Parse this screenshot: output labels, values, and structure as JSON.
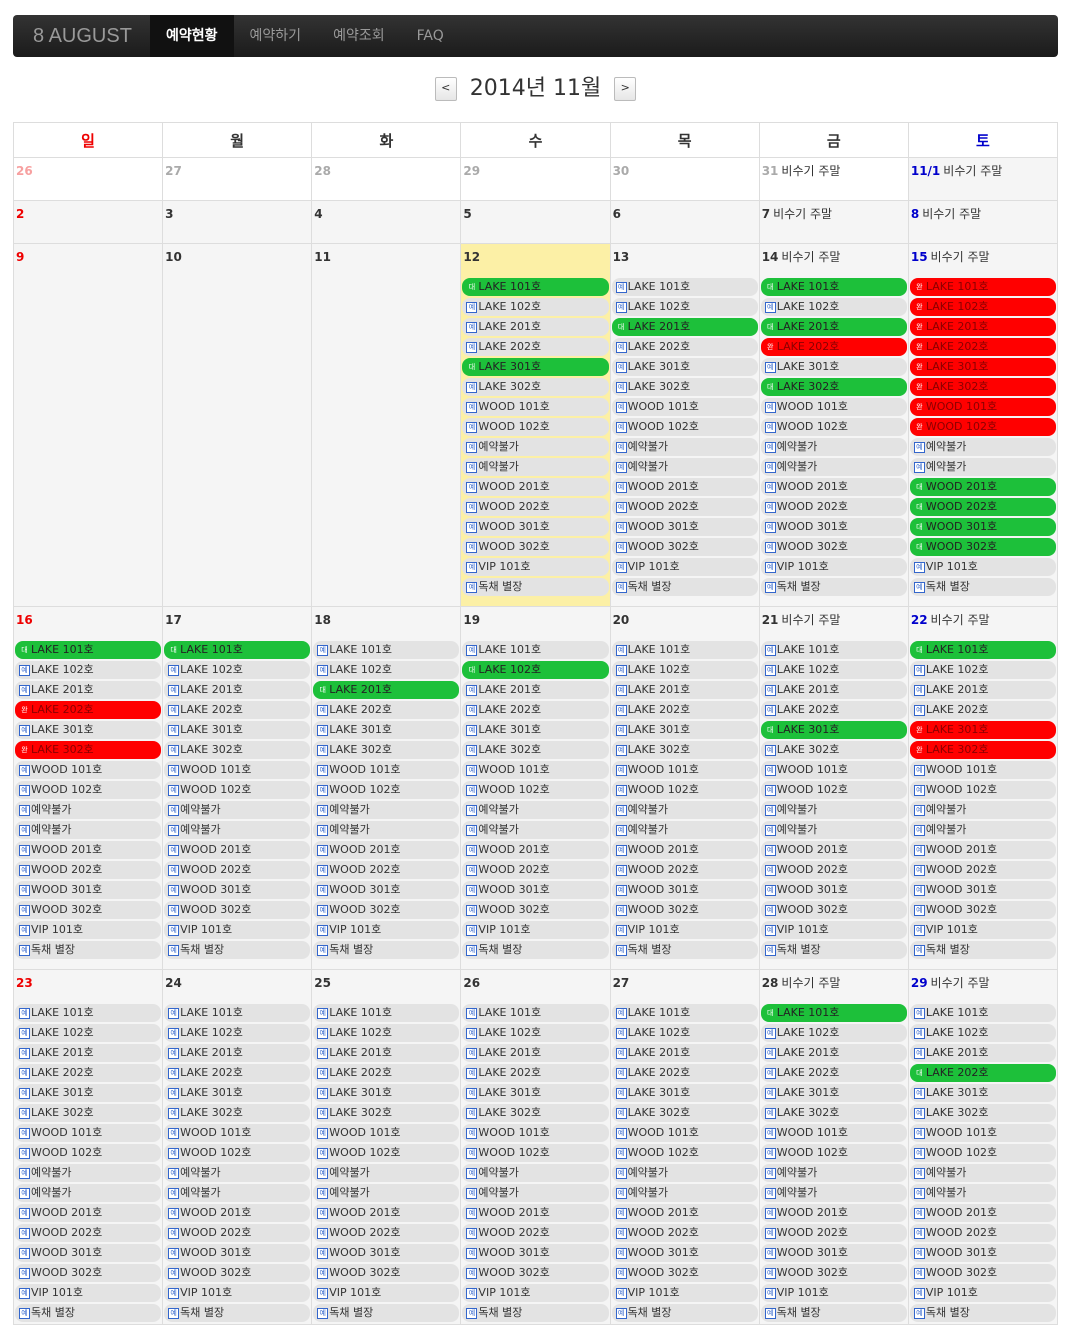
{
  "navbar": {
    "brand": "8 AUGUST",
    "items": [
      {
        "label": "예약현황",
        "active": true
      },
      {
        "label": "예약하기",
        "active": false
      },
      {
        "label": "예약조회",
        "active": false
      },
      {
        "label": "FAQ",
        "active": false
      }
    ]
  },
  "month": {
    "title": "2014년 11월",
    "prev_label": "<",
    "next_label": ">"
  },
  "weekdays": [
    "일",
    "월",
    "화",
    "수",
    "목",
    "금",
    "토"
  ],
  "status_badges": {
    "avail": "예",
    "wait": "대",
    "done": "완"
  },
  "colors": {
    "available": "#e3e3e3",
    "waiting": "#1dc03a",
    "completed": "#ff0000",
    "today": "#fcf0a6"
  },
  "room_names": [
    "LAKE 101호",
    "LAKE 102호",
    "LAKE 201호",
    "LAKE 202호",
    "LAKE 301호",
    "LAKE 302호",
    "WOOD 101호",
    "WOOD 102호",
    "예약불가",
    "예약불가",
    "WOOD 201호",
    "WOOD 202호",
    "WOOD 301호",
    "WOOD 302호",
    "VIP 101호",
    "독채 별장"
  ],
  "weeks": [
    {
      "days": [
        {
          "num": "26",
          "other": true
        },
        {
          "num": "27",
          "other": true
        },
        {
          "num": "28",
          "other": true
        },
        {
          "num": "29",
          "other": true
        },
        {
          "num": "30",
          "other": true
        },
        {
          "num": "31",
          "other": true,
          "note": "비수기 주말"
        },
        {
          "num": "11/1",
          "note": "비수기 주말"
        }
      ]
    },
    {
      "days": [
        {
          "num": "2"
        },
        {
          "num": "3"
        },
        {
          "num": "4"
        },
        {
          "num": "5"
        },
        {
          "num": "6"
        },
        {
          "num": "7",
          "note": "비수기 주말"
        },
        {
          "num": "8",
          "note": "비수기 주말"
        }
      ]
    },
    {
      "days": [
        {
          "num": "9"
        },
        {
          "num": "10"
        },
        {
          "num": "11"
        },
        {
          "num": "12",
          "today": true,
          "rooms": "wAAAwAAAAAAAAAAA"
        },
        {
          "num": "13",
          "rooms": "AAwAAAAAAAAAAAAA"
        },
        {
          "num": "14",
          "note": "비수기 주말",
          "rooms": "wAwdAwAAAAAAAAAA"
        },
        {
          "num": "15",
          "note": "비수기 주말",
          "rooms": "ddddddddAAwwwwAA"
        }
      ]
    },
    {
      "days": [
        {
          "num": "16",
          "rooms": "wAAdAdAAAAAAAAAA"
        },
        {
          "num": "17",
          "rooms": "wAAAAAAAAAAAAAAA"
        },
        {
          "num": "18",
          "rooms": "AAwAAAAAAAAAAAAA"
        },
        {
          "num": "19",
          "rooms": "AwAAAAAAAAAAAAAA"
        },
        {
          "num": "20",
          "rooms": "AAAAAAAAAAAAAAAA"
        },
        {
          "num": "21",
          "note": "비수기 주말",
          "rooms": "AAAAwAAAAAAAAAAA"
        },
        {
          "num": "22",
          "note": "비수기 주말",
          "rooms": "wAAAddAAAAAAAAAA"
        }
      ]
    },
    {
      "days": [
        {
          "num": "23",
          "rooms": "AAAAAAAAAAAAAAAA"
        },
        {
          "num": "24",
          "rooms": "AAAAAAAAAAAAAAAA"
        },
        {
          "num": "25",
          "rooms": "AAAAAAAAAAAAAAAA"
        },
        {
          "num": "26",
          "rooms": "AAAAAAAAAAAAAAAA"
        },
        {
          "num": "27",
          "rooms": "AAAAAAAAAAAAAAAA"
        },
        {
          "num": "28",
          "note": "비수기 주말",
          "rooms": "wAAAAAAAAAAAAAAA"
        },
        {
          "num": "29",
          "note": "비수기 주말",
          "rooms": "AAAwAAAAAAAAAAAA"
        }
      ]
    }
  ]
}
